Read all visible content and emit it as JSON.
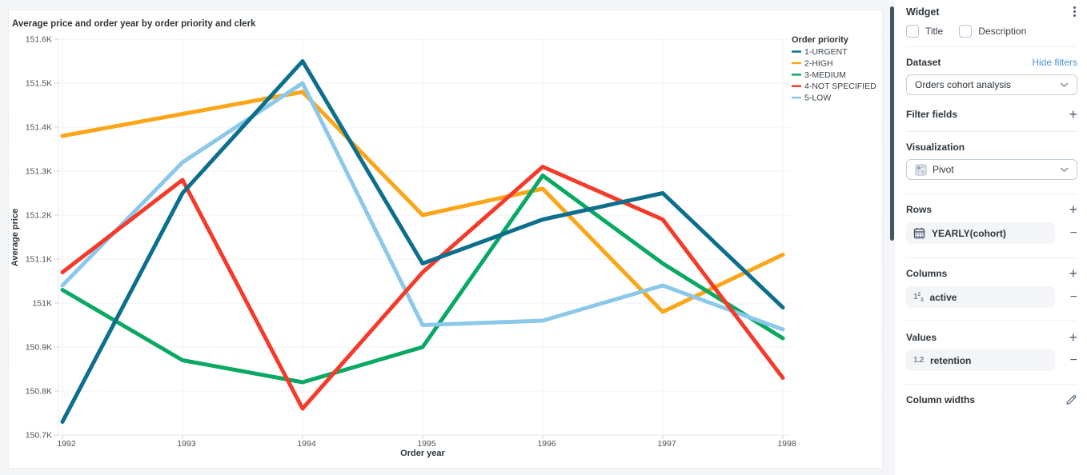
{
  "chart_data": {
    "type": "line",
    "title": "Average price and order year by order priority and clerk",
    "xlabel": "Order year",
    "ylabel": "Average price",
    "legend_title": "Order priority",
    "legend_position": "top-right",
    "grid": true,
    "x": [
      1992,
      1993,
      1994,
      1995,
      1996,
      1997,
      1998
    ],
    "y_unit": "K (thousands)",
    "ylim": [
      150.7,
      151.6
    ],
    "y_ticks": {
      "values": [
        151.6,
        151.5,
        151.4,
        151.3,
        151.2,
        151.1,
        151.0,
        150.9,
        150.8,
        150.7
      ],
      "labels": [
        "151.6K",
        "151.5K",
        "151.4K",
        "151.3K",
        "151.2K",
        "151.1K",
        "151K",
        "150.9K",
        "150.8K",
        "150.7K"
      ]
    },
    "series": [
      {
        "name": "1-URGENT",
        "color": "#0d6f8c",
        "values": [
          150.73,
          151.25,
          151.55,
          151.09,
          151.19,
          151.25,
          150.99
        ]
      },
      {
        "name": "2-HIGH",
        "color": "#fba518",
        "values": [
          151.38,
          151.43,
          151.48,
          151.2,
          151.26,
          150.98,
          151.11
        ]
      },
      {
        "name": "3-MEDIUM",
        "color": "#09a863",
        "values": [
          151.03,
          150.87,
          150.82,
          150.9,
          151.29,
          151.09,
          150.92
        ]
      },
      {
        "name": "4-NOT SPECIFIED",
        "color": "#f43b2b",
        "values": [
          151.07,
          151.28,
          150.76,
          151.07,
          151.31,
          151.19,
          150.83
        ]
      },
      {
        "name": "5-LOW",
        "color": "#8cc8e9",
        "values": [
          151.04,
          151.32,
          151.5,
          150.95,
          150.96,
          151.04,
          150.94
        ]
      }
    ]
  },
  "panel": {
    "title": "Widget",
    "checkboxes": [
      {
        "label": "Title",
        "checked": false
      },
      {
        "label": "Description",
        "checked": false
      }
    ],
    "dataset": {
      "label": "Dataset",
      "link": "Hide filters",
      "value": "Orders cohort analysis"
    },
    "filter_fields": {
      "label": "Filter fields"
    },
    "visualization": {
      "label": "Visualization",
      "value": "Pivot"
    },
    "rows": {
      "label": "Rows",
      "items": [
        {
          "label": "YEARLY(cohort)",
          "icon": "calendar-icon"
        }
      ]
    },
    "columns": {
      "label": "Columns",
      "items": [
        {
          "label": "active",
          "icon": "number-123-icon"
        }
      ]
    },
    "values": {
      "label": "Values",
      "items": [
        {
          "label": "retention",
          "icon": "decimal-1-2-icon"
        }
      ]
    },
    "column_widths": {
      "label": "Column widths"
    }
  },
  "glyphs": {
    "plus": "+",
    "minus": "−",
    "decimal_icon": "1.2",
    "num_1": "1",
    "num_2": "2",
    "num_3": "3"
  },
  "colors": {
    "accent_link": "#4a90d9",
    "icon": "#4c5773",
    "scrollbar": "#46566a",
    "pill_bg": "#f4f5f7",
    "canvas_bg": "#f4f5f6"
  }
}
